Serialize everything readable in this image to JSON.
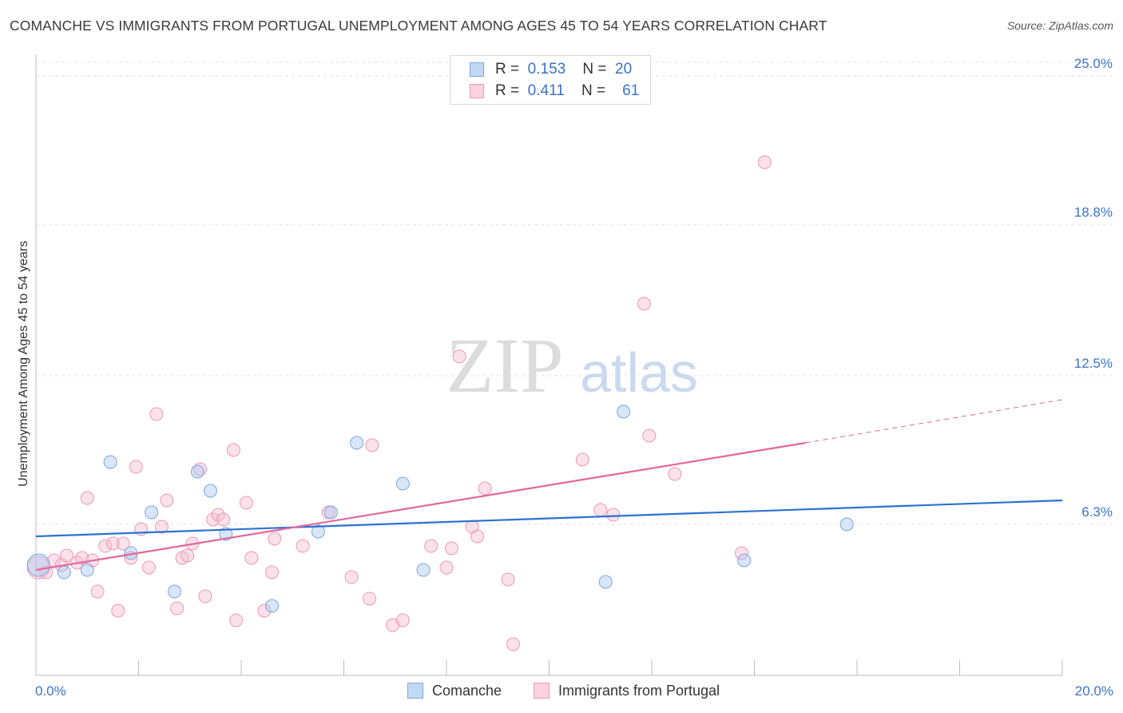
{
  "header": {
    "title": "COMANCHE VS IMMIGRANTS FROM PORTUGAL UNEMPLOYMENT AMONG AGES 45 TO 54 YEARS CORRELATION CHART",
    "source": "Source: ZipAtlas.com"
  },
  "watermark": {
    "part1": "ZIP",
    "part2": "atlas"
  },
  "legend_top": {
    "rows": [
      {
        "r_label": "R =",
        "r_value": "0.153",
        "n_label": "N =",
        "n_value": "20"
      },
      {
        "r_label": "R =",
        "r_value": "0.411",
        "n_label": "N =",
        "n_value": "61"
      }
    ]
  },
  "legend_bottom": {
    "items": [
      "Comanche",
      "Immigrants from Portugal"
    ]
  },
  "colors": {
    "comanche_fill": "#a9c8f0",
    "comanche_stroke": "#7aa6e0",
    "comanche_line": "#2c72d2",
    "portugal_fill": "#f7bfd0",
    "portugal_stroke": "#ee97b4",
    "portugal_line": "#e2679a",
    "tick_label": "#3a73c9",
    "grid": "#e2e2e2"
  },
  "chart_data": {
    "type": "scatter",
    "title": "COMANCHE VS IMMIGRANTS FROM PORTUGAL UNEMPLOYMENT AMONG AGES 45 TO 54 YEARS CORRELATION CHART",
    "xlabel": "",
    "ylabel": "Unemployment Among Ages 45 to 54 years",
    "xlim": [
      0,
      20
    ],
    "ylim": [
      0,
      25.9
    ],
    "x_tick_labels": [
      "0.0%",
      "20.0%"
    ],
    "y_ticks": [
      6.3,
      12.5,
      18.8,
      25.0
    ],
    "y_tick_labels": [
      "6.3%",
      "12.5%",
      "18.8%",
      "25.0%"
    ],
    "series": [
      {
        "name": "Comanche",
        "R": 0.153,
        "N": 20,
        "points": [
          [
            0.05,
            4.6
          ],
          [
            0.55,
            4.3
          ],
          [
            1.0,
            4.4
          ],
          [
            1.45,
            8.9
          ],
          [
            1.85,
            5.1
          ],
          [
            2.25,
            6.8
          ],
          [
            2.7,
            3.5
          ],
          [
            3.15,
            8.5
          ],
          [
            3.4,
            7.7
          ],
          [
            3.7,
            5.9
          ],
          [
            4.6,
            2.9
          ],
          [
            5.5,
            6.0
          ],
          [
            5.75,
            6.8
          ],
          [
            6.25,
            9.7
          ],
          [
            7.15,
            8.0
          ],
          [
            7.55,
            4.4
          ],
          [
            11.1,
            3.9
          ],
          [
            11.45,
            11.0
          ],
          [
            13.8,
            4.8
          ],
          [
            15.8,
            6.3
          ]
        ],
        "trend": {
          "x": [
            0,
            20
          ],
          "y": [
            5.8,
            7.3
          ]
        }
      },
      {
        "name": "Immigrants from Portugal",
        "R": 0.411,
        "N": 61,
        "points": [
          [
            0.05,
            4.5
          ],
          [
            0.2,
            4.3
          ],
          [
            0.35,
            4.8
          ],
          [
            0.5,
            4.6
          ],
          [
            0.6,
            5.0
          ],
          [
            0.8,
            4.7
          ],
          [
            0.9,
            4.9
          ],
          [
            1.1,
            4.8
          ],
          [
            1.0,
            7.4
          ],
          [
            1.2,
            3.5
          ],
          [
            1.35,
            5.4
          ],
          [
            1.5,
            5.5
          ],
          [
            1.6,
            2.7
          ],
          [
            1.7,
            5.5
          ],
          [
            1.85,
            4.9
          ],
          [
            1.95,
            8.7
          ],
          [
            2.05,
            6.1
          ],
          [
            2.2,
            4.5
          ],
          [
            2.35,
            10.9
          ],
          [
            2.45,
            6.2
          ],
          [
            2.55,
            7.3
          ],
          [
            2.75,
            2.8
          ],
          [
            2.85,
            4.9
          ],
          [
            2.95,
            5.0
          ],
          [
            3.05,
            5.5
          ],
          [
            3.2,
            8.6
          ],
          [
            3.3,
            3.3
          ],
          [
            3.45,
            6.5
          ],
          [
            3.55,
            6.7
          ],
          [
            3.65,
            6.5
          ],
          [
            3.85,
            9.4
          ],
          [
            3.9,
            2.3
          ],
          [
            4.1,
            7.2
          ],
          [
            4.2,
            4.9
          ],
          [
            4.45,
            2.7
          ],
          [
            4.6,
            4.3
          ],
          [
            4.65,
            5.7
          ],
          [
            5.2,
            5.4
          ],
          [
            5.7,
            6.8
          ],
          [
            6.15,
            4.1
          ],
          [
            6.5,
            3.2
          ],
          [
            6.55,
            9.6
          ],
          [
            6.95,
            2.1
          ],
          [
            7.15,
            2.3
          ],
          [
            7.7,
            5.4
          ],
          [
            8.0,
            4.5
          ],
          [
            8.1,
            5.3
          ],
          [
            8.25,
            13.3
          ],
          [
            8.5,
            6.2
          ],
          [
            8.6,
            5.8
          ],
          [
            8.75,
            7.8
          ],
          [
            9.3,
            1.3
          ],
          [
            9.2,
            4.0
          ],
          [
            10.65,
            9.0
          ],
          [
            11.0,
            6.9
          ],
          [
            11.25,
            6.7
          ],
          [
            11.85,
            15.5
          ],
          [
            11.95,
            10.0
          ],
          [
            12.45,
            8.4
          ],
          [
            13.75,
            5.1
          ],
          [
            14.2,
            21.4
          ]
        ],
        "trend": {
          "x": [
            0,
            15
          ],
          "y": [
            4.4,
            9.7
          ]
        },
        "trend_dashed": {
          "x": [
            15,
            20
          ],
          "y": [
            9.7,
            11.5
          ]
        }
      }
    ]
  }
}
